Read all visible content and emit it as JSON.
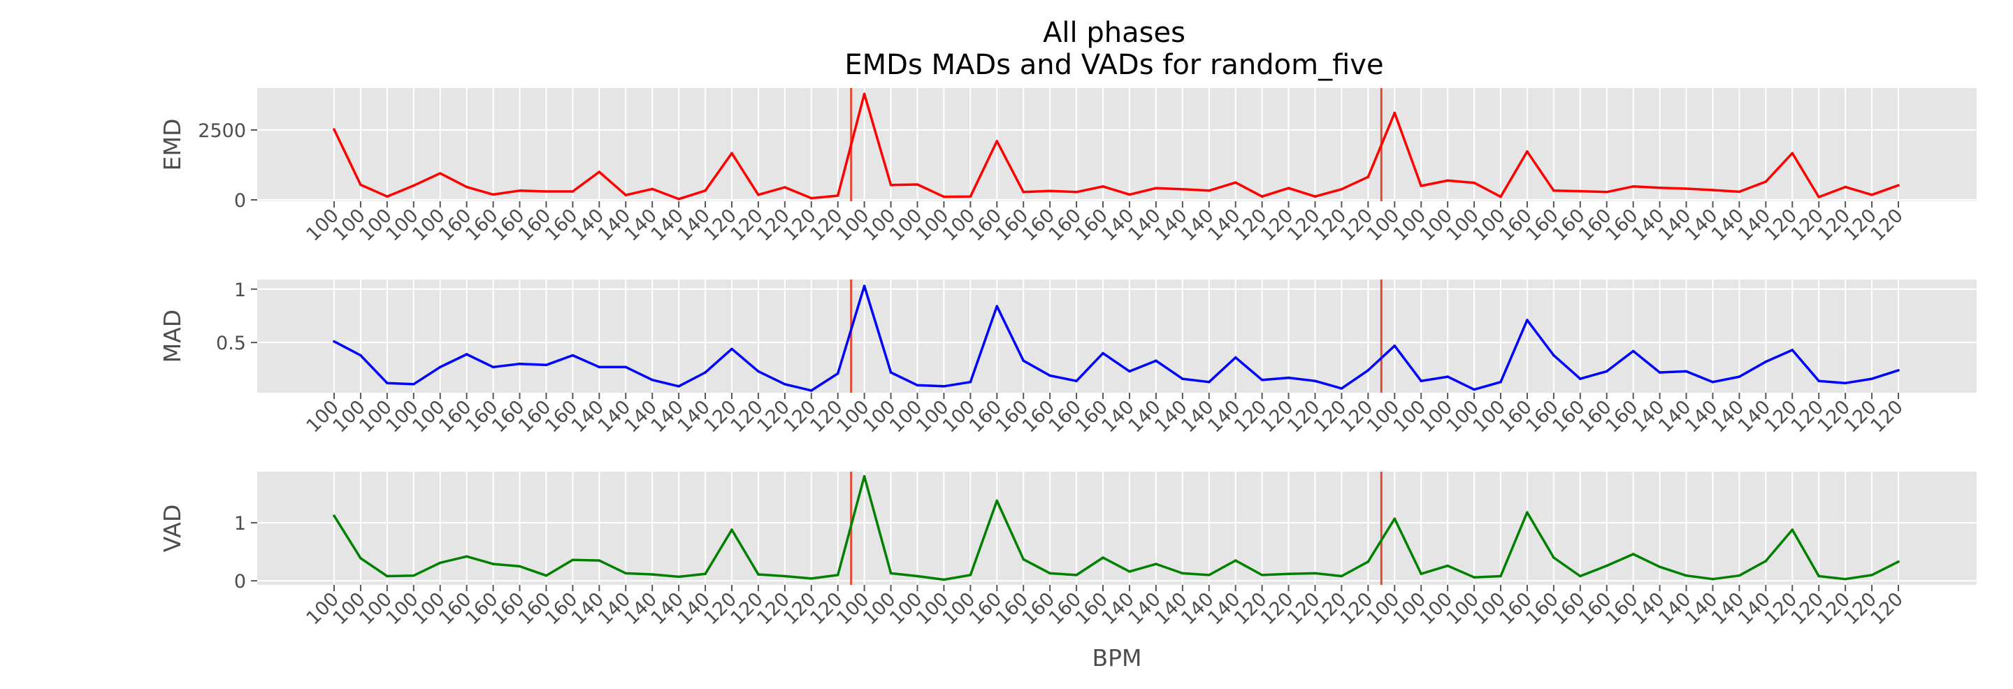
{
  "figure": {
    "title": "All phases",
    "subtitle": "EMDs MADs and VADs for random_five",
    "background": "#ffffff",
    "axes_facecolor": "#e5e5e5",
    "grid_color": "#ffffff",
    "style": "ggplot"
  },
  "chart_data": [
    {
      "type": "line",
      "panel": "emd",
      "title": "",
      "xlabel": "",
      "ylabel": "EMD",
      "categories": [
        "100",
        "100",
        "100",
        "100",
        "100",
        "160",
        "160",
        "160",
        "160",
        "160",
        "140",
        "140",
        "140",
        "140",
        "140",
        "120",
        "120",
        "120",
        "120",
        "120",
        "100",
        "100",
        "100",
        "100",
        "100",
        "160",
        "160",
        "160",
        "160",
        "160",
        "140",
        "140",
        "140",
        "140",
        "140",
        "120",
        "120",
        "120",
        "120",
        "120",
        "100",
        "100",
        "100",
        "100",
        "100",
        "160",
        "160",
        "160",
        "160",
        "160",
        "140",
        "140",
        "140",
        "140",
        "140",
        "120",
        "120",
        "120",
        "120",
        "120"
      ],
      "series": [
        {
          "color": "#ff0000",
          "values": [
            2520,
            540,
            120,
            510,
            950,
            460,
            190,
            330,
            300,
            300,
            1000,
            170,
            390,
            30,
            330,
            1670,
            180,
            450,
            60,
            150,
            3790,
            530,
            550,
            110,
            120,
            2100,
            280,
            320,
            280,
            480,
            190,
            420,
            380,
            330,
            620,
            120,
            420,
            120,
            380,
            820,
            3110,
            500,
            690,
            610,
            110,
            1730,
            330,
            310,
            280,
            480,
            430,
            400,
            350,
            290,
            650,
            1670,
            100,
            460,
            180,
            520
          ]
        }
      ],
      "ylim": [
        -50,
        4000
      ],
      "yticks": [
        0,
        2500
      ],
      "vlines": [
        {
          "x": 19.5,
          "color": "#e24a33"
        },
        {
          "x": 39.5,
          "color": "#e24a33"
        }
      ],
      "grid": true
    },
    {
      "type": "line",
      "panel": "mad",
      "title": "",
      "xlabel": "",
      "ylabel": "MAD",
      "categories": [
        "100",
        "100",
        "100",
        "100",
        "100",
        "160",
        "160",
        "160",
        "160",
        "160",
        "140",
        "140",
        "140",
        "140",
        "140",
        "120",
        "120",
        "120",
        "120",
        "120",
        "100",
        "100",
        "100",
        "100",
        "100",
        "160",
        "160",
        "160",
        "160",
        "160",
        "140",
        "140",
        "140",
        "140",
        "140",
        "120",
        "120",
        "120",
        "120",
        "120",
        "100",
        "100",
        "100",
        "100",
        "100",
        "160",
        "160",
        "160",
        "160",
        "160",
        "140",
        "140",
        "140",
        "140",
        "140",
        "120",
        "120",
        "120",
        "120",
        "120"
      ],
      "series": [
        {
          "color": "#0000ff",
          "values": [
            0.51,
            0.38,
            0.12,
            0.11,
            0.27,
            0.39,
            0.27,
            0.3,
            0.29,
            0.38,
            0.27,
            0.27,
            0.15,
            0.09,
            0.22,
            0.44,
            0.23,
            0.11,
            0.05,
            0.21,
            1.03,
            0.22,
            0.1,
            0.09,
            0.13,
            0.84,
            0.33,
            0.19,
            0.14,
            0.4,
            0.23,
            0.33,
            0.16,
            0.13,
            0.36,
            0.15,
            0.17,
            0.14,
            0.07,
            0.24,
            0.47,
            0.14,
            0.18,
            0.06,
            0.13,
            0.71,
            0.38,
            0.16,
            0.23,
            0.42,
            0.22,
            0.23,
            0.13,
            0.18,
            0.32,
            0.43,
            0.14,
            0.12,
            0.16,
            0.24
          ]
        }
      ],
      "ylim": [
        0.03,
        1.09
      ],
      "yticks": [
        0.5,
        1.0
      ],
      "vlines": [
        {
          "x": 19.5,
          "color": "#e24a33"
        },
        {
          "x": 39.5,
          "color": "#e24a33"
        }
      ],
      "grid": true
    },
    {
      "type": "line",
      "panel": "vad",
      "title": "",
      "xlabel": "BPM",
      "ylabel": "VAD",
      "categories": [
        "100",
        "100",
        "100",
        "100",
        "100",
        "160",
        "160",
        "160",
        "160",
        "160",
        "140",
        "140",
        "140",
        "140",
        "140",
        "120",
        "120",
        "120",
        "120",
        "120",
        "100",
        "100",
        "100",
        "100",
        "100",
        "160",
        "160",
        "160",
        "160",
        "160",
        "140",
        "140",
        "140",
        "140",
        "140",
        "120",
        "120",
        "120",
        "120",
        "120",
        "100",
        "100",
        "100",
        "100",
        "100",
        "160",
        "160",
        "160",
        "160",
        "160",
        "140",
        "140",
        "140",
        "140",
        "140",
        "120",
        "120",
        "120",
        "120",
        "120"
      ],
      "series": [
        {
          "color": "#008000",
          "values": [
            1.12,
            0.39,
            0.08,
            0.09,
            0.31,
            0.42,
            0.29,
            0.25,
            0.09,
            0.36,
            0.35,
            0.13,
            0.11,
            0.07,
            0.12,
            0.88,
            0.11,
            0.08,
            0.04,
            0.1,
            1.8,
            0.13,
            0.08,
            0.02,
            0.1,
            1.38,
            0.37,
            0.13,
            0.1,
            0.4,
            0.16,
            0.29,
            0.13,
            0.1,
            0.35,
            0.1,
            0.12,
            0.13,
            0.08,
            0.33,
            1.07,
            0.12,
            0.26,
            0.06,
            0.08,
            1.18,
            0.4,
            0.08,
            0.26,
            0.46,
            0.24,
            0.09,
            0.03,
            0.09,
            0.34,
            0.88,
            0.08,
            0.03,
            0.1,
            0.33
          ]
        }
      ],
      "ylim": [
        -0.07,
        1.88
      ],
      "yticks": [
        0,
        1
      ],
      "vlines": [
        {
          "x": 19.5,
          "color": "#e24a33"
        },
        {
          "x": 39.5,
          "color": "#e24a33"
        }
      ],
      "grid": true
    }
  ]
}
